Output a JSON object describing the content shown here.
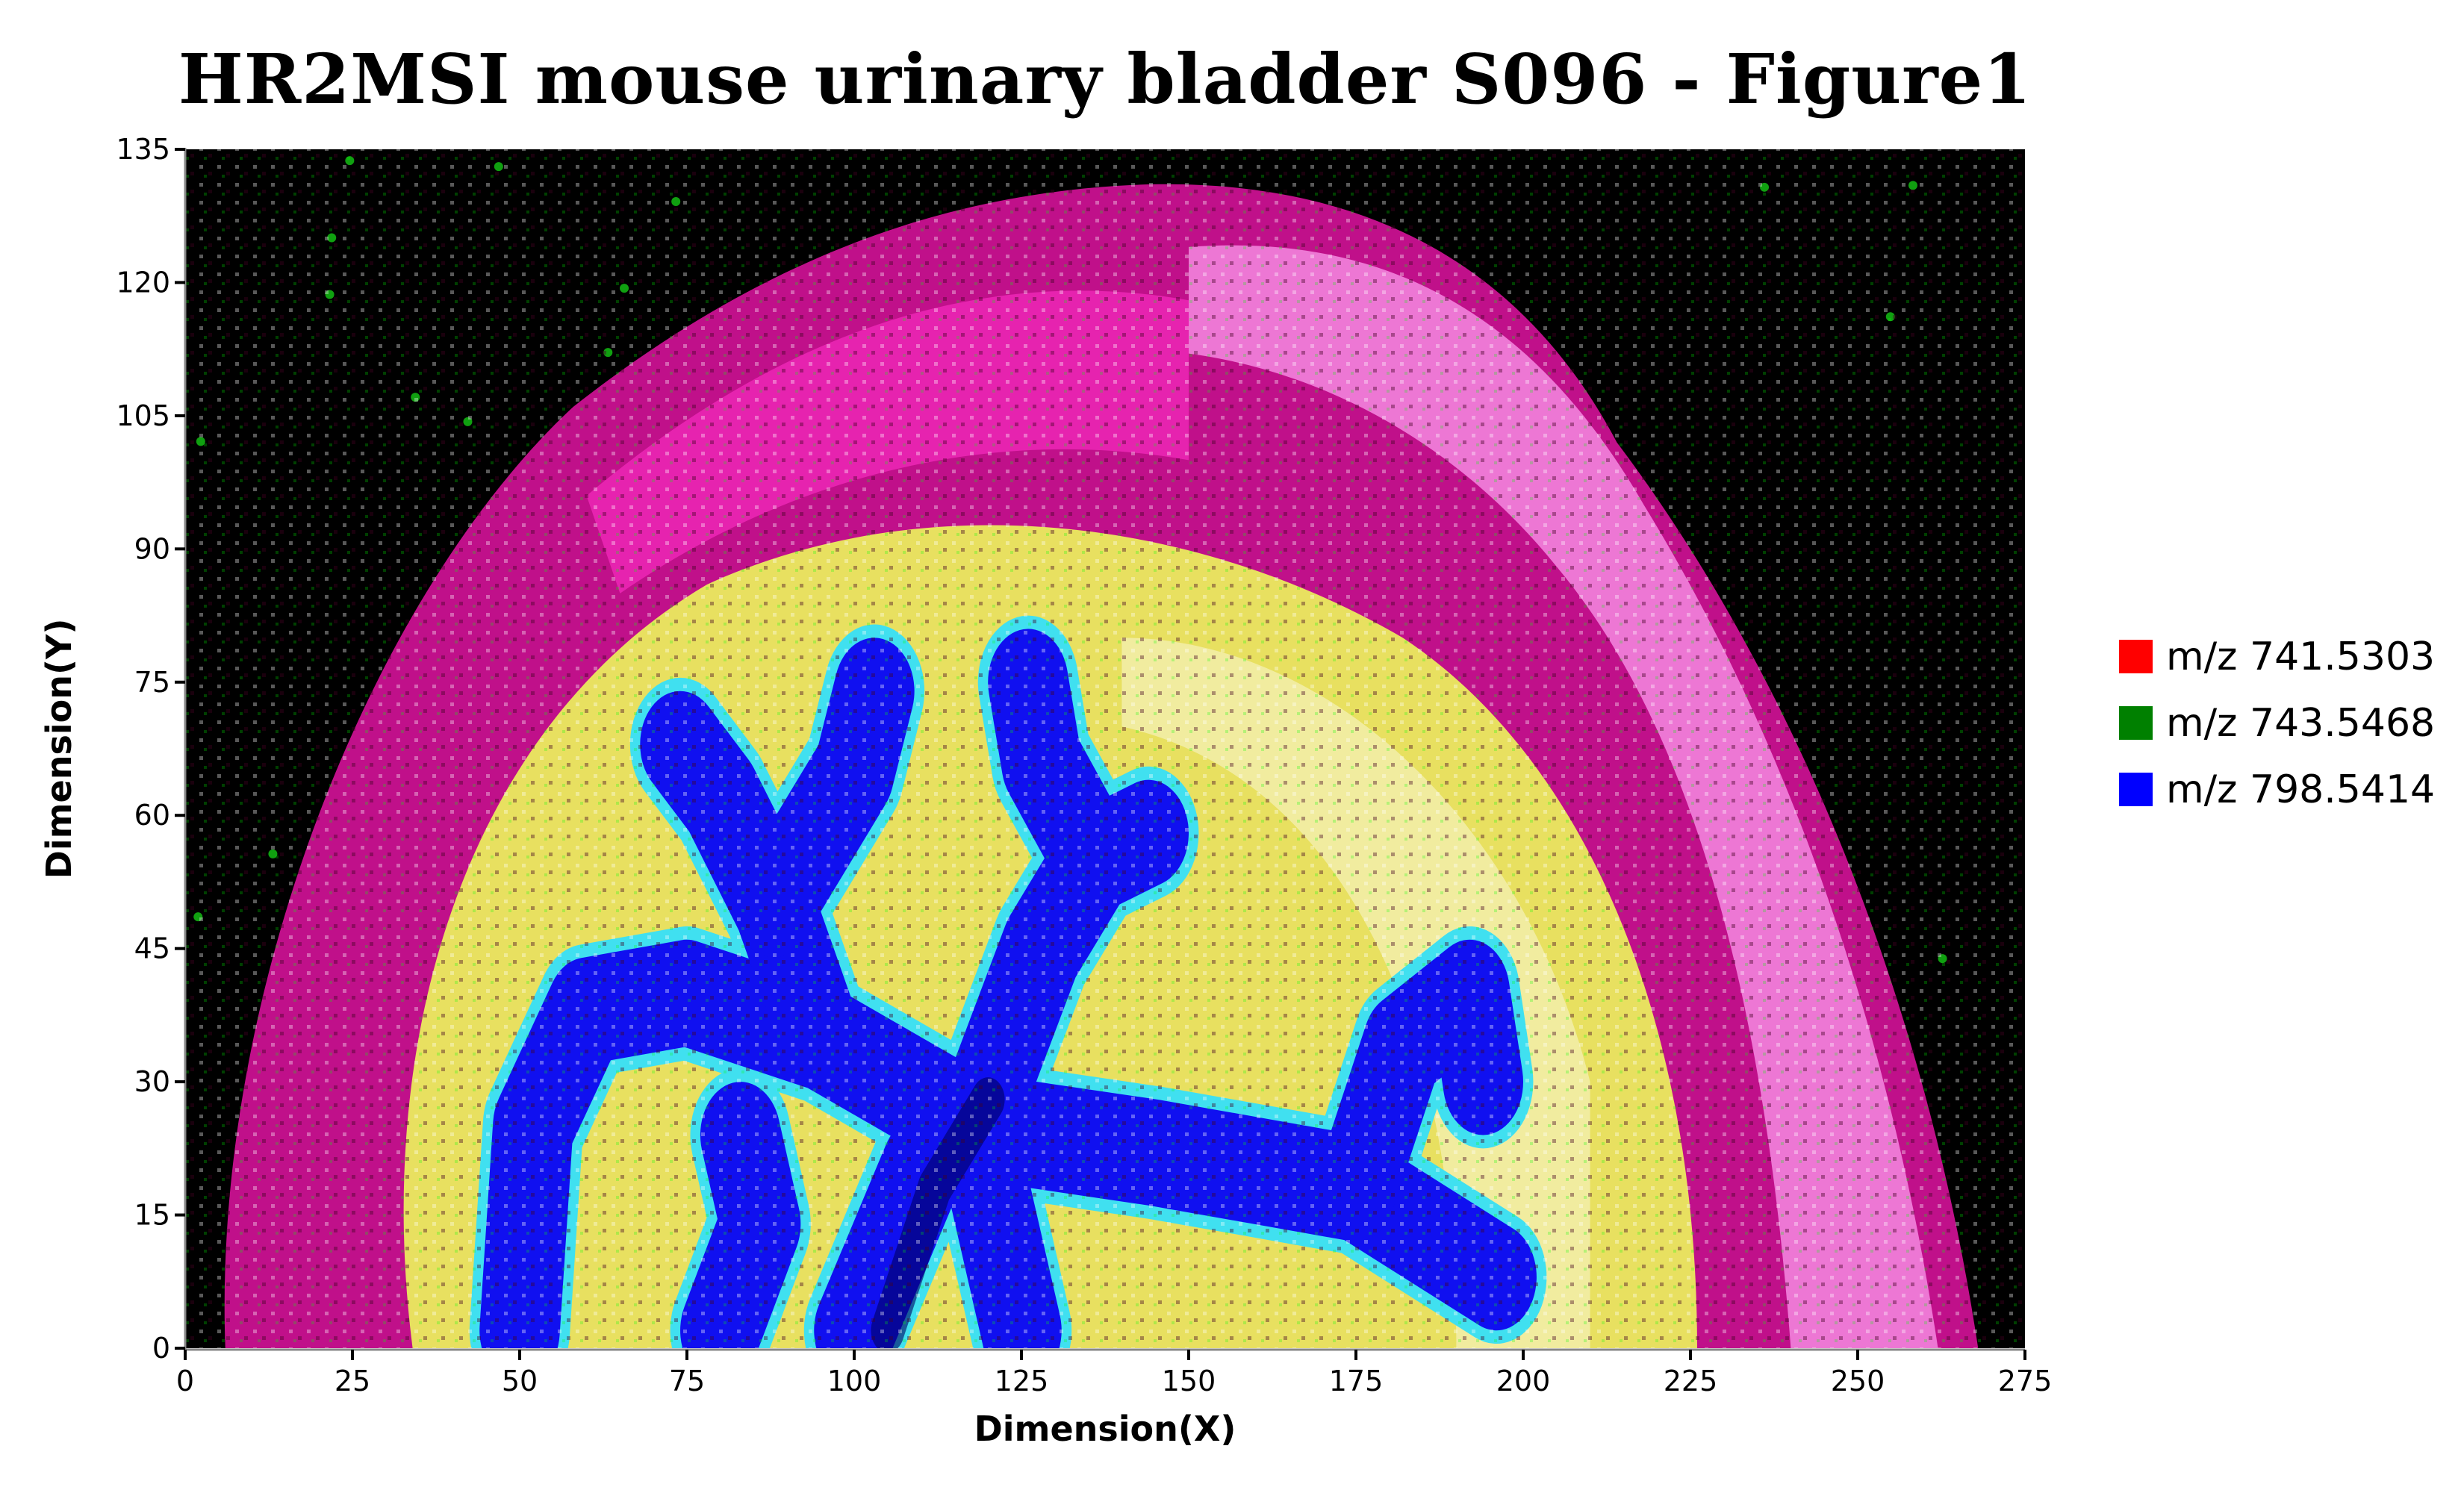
{
  "chart_data": {
    "type": "heatmap",
    "subtype": "RGB ion image overlay",
    "title": "HR2MSI mouse urinary bladder S096 - Figure1",
    "xlabel": "Dimension(X)",
    "ylabel": "Dimension(Y)",
    "xlim": [
      0,
      275
    ],
    "ylim": [
      0,
      135
    ],
    "xticks": [
      0,
      25,
      50,
      75,
      100,
      125,
      150,
      175,
      200,
      225,
      250,
      275
    ],
    "yticks": [
      0,
      15,
      30,
      45,
      60,
      75,
      90,
      105,
      120,
      135
    ],
    "grid": false,
    "legend_position": "right",
    "series": [
      {
        "name": "m/z 741.5303",
        "color": "#ff0000"
      },
      {
        "name": "m/z 743.5468",
        "color": "#008000"
      },
      {
        "name": "m/z 798.5414",
        "color": "#0000ff"
      }
    ],
    "background": "#000000"
  }
}
